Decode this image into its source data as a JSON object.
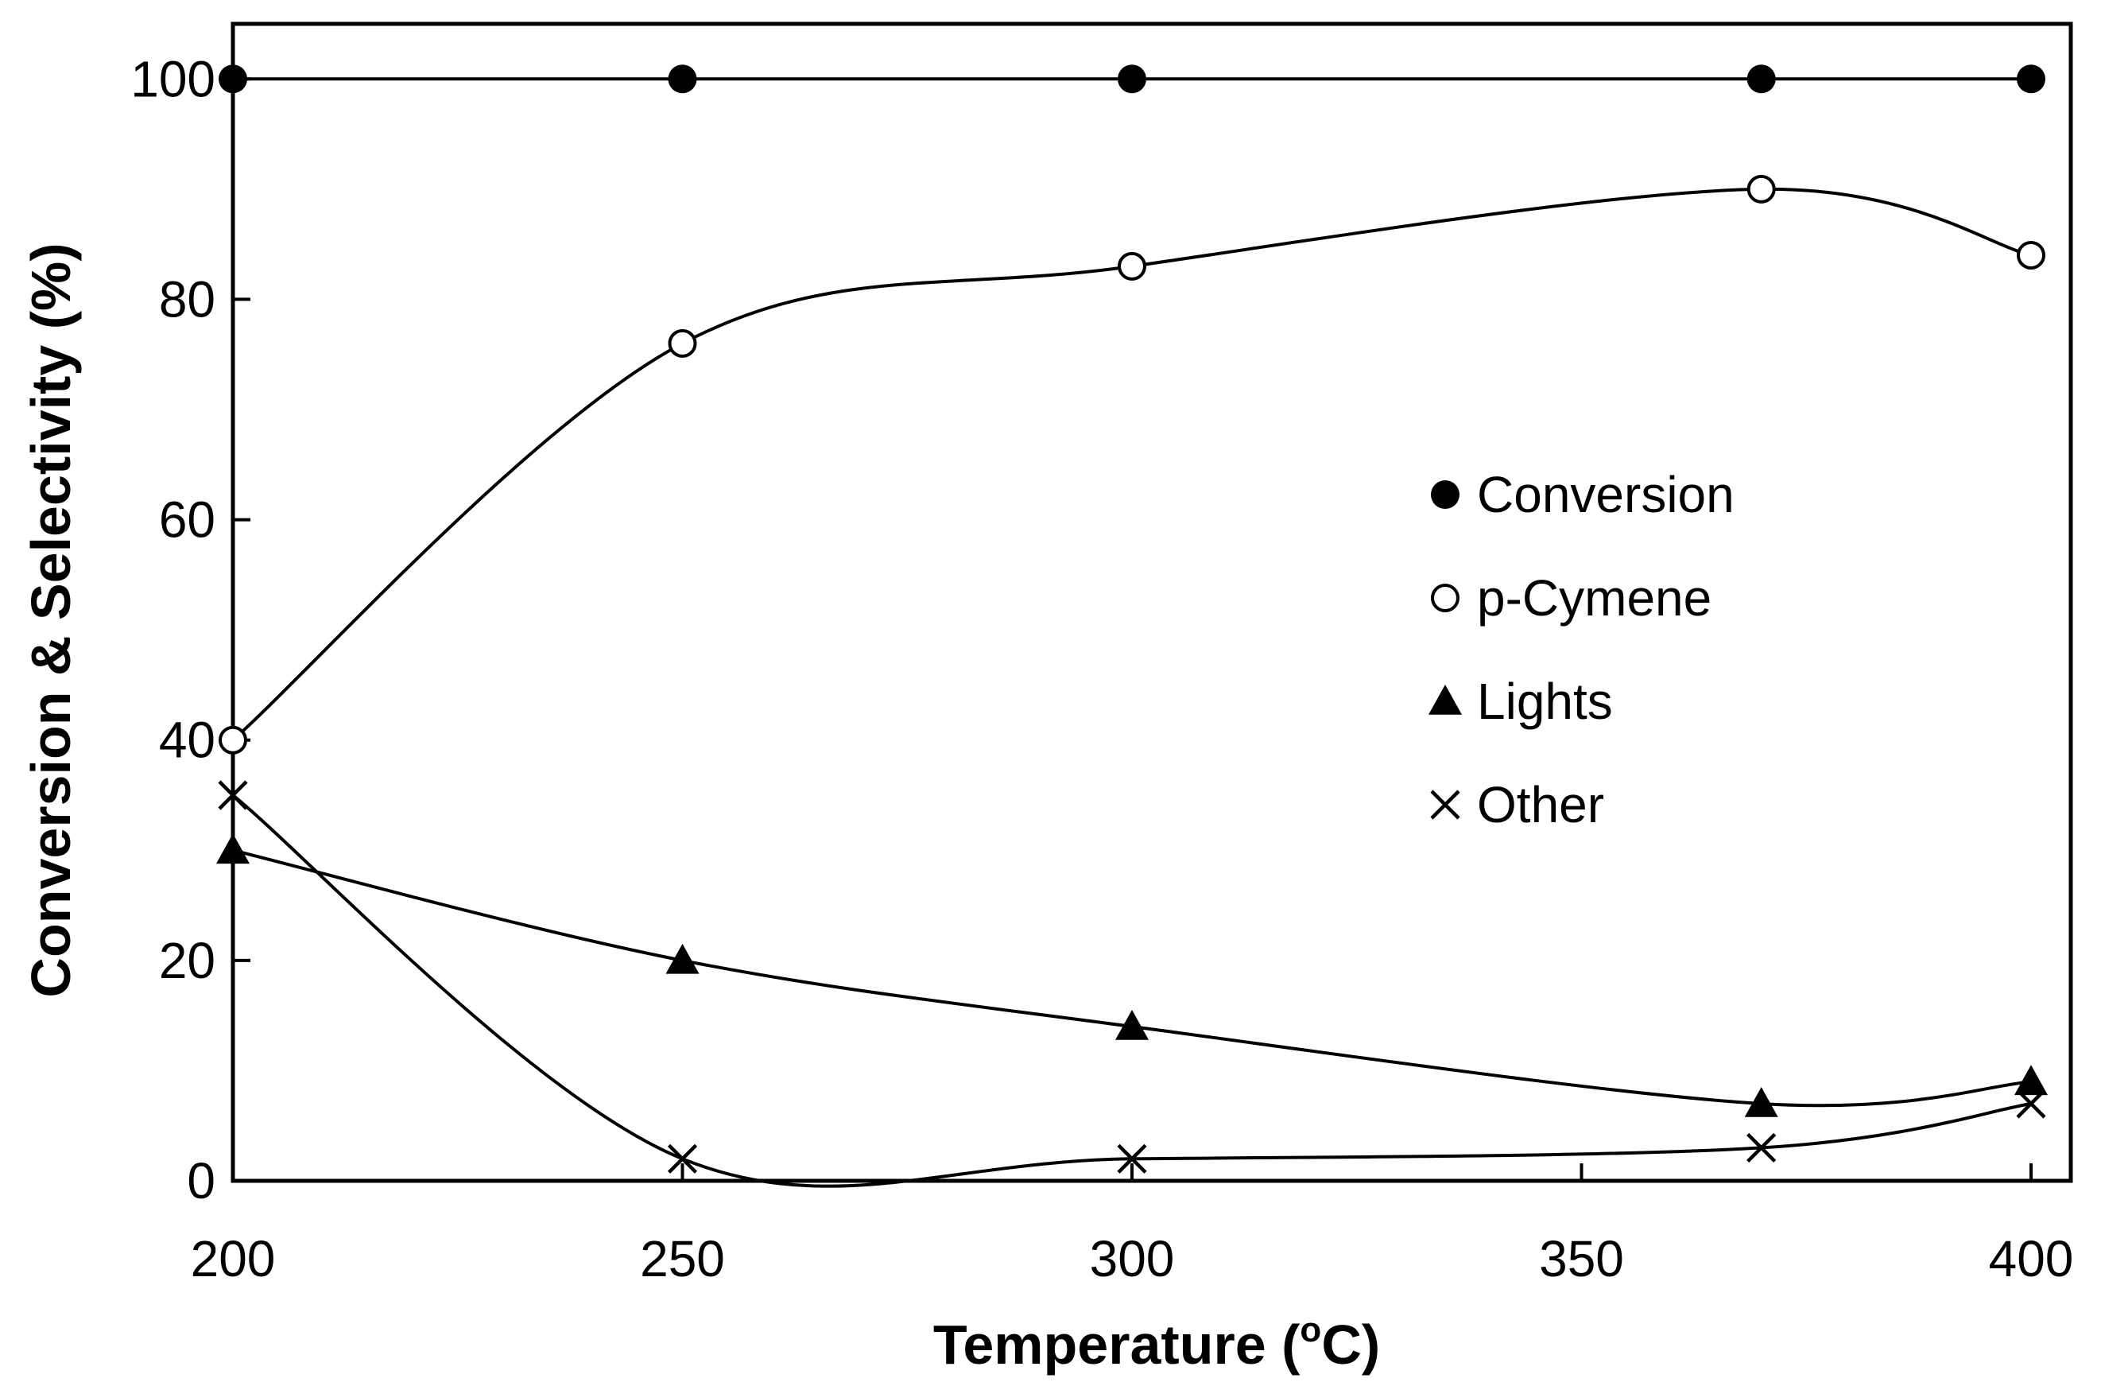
{
  "chart_data": {
    "type": "line",
    "title": "",
    "xlabel": "Temperature (",
    "xlabel_superscript": "o",
    "xlabel_suffix": "C)",
    "ylabel": "Conversion & Selectivity (%)",
    "xlim": [
      200,
      400
    ],
    "ylim": [
      0,
      105
    ],
    "xticks": [
      200,
      250,
      300,
      350,
      400
    ],
    "yticks": [
      0,
      20,
      40,
      60,
      80,
      100
    ],
    "grid": false,
    "legend_position": "right-center",
    "x": [
      200,
      250,
      300,
      370,
      400
    ],
    "series": [
      {
        "name": "Conversion",
        "marker": "filled-circle",
        "values": [
          100,
          100,
          100,
          100,
          100
        ]
      },
      {
        "name": "p-Cymene",
        "marker": "open-circle",
        "values": [
          40,
          76,
          83,
          90,
          84
        ]
      },
      {
        "name": "Lights",
        "marker": "filled-triangle",
        "values": [
          30,
          20,
          14,
          7,
          9
        ]
      },
      {
        "name": "Other",
        "marker": "cross",
        "values": [
          35,
          2,
          2,
          3,
          7
        ]
      }
    ],
    "colors": {
      "line": "#000000",
      "background": "#ffffff"
    }
  }
}
